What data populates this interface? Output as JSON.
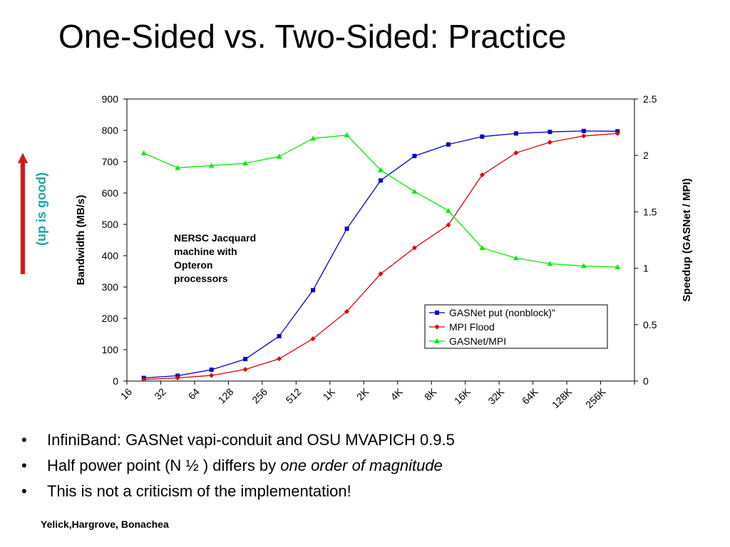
{
  "slide": {
    "title": "One-Sided vs. Two-Sided: Practice",
    "up_note": "(up is good)",
    "bullets": [
      {
        "text": "InfiniBand: GASNet vapi-conduit and OSU MVAPICH 0.9.5",
        "italic": ""
      },
      {
        "text": "Half power point (N ½ ) differs by ",
        "italic": "one order of magnitude"
      },
      {
        "text": "This is not a criticism of the implementation!",
        "italic": ""
      }
    ],
    "credit": "Yelick,Hargrove, Bonachea"
  },
  "chart_data": {
    "type": "line",
    "title": "",
    "xlabel": "",
    "ylabel": "Bandwidth (MB/s)",
    "y2label": "Speedup (GASNet / MPI)",
    "categories": [
      "16",
      "32",
      "64",
      "128",
      "256",
      "512",
      "1K",
      "2K",
      "4K",
      "8K",
      "16K",
      "32K",
      "64K",
      "128K",
      "256K"
    ],
    "ylim": [
      0,
      900
    ],
    "yticks": [
      0,
      100,
      200,
      300,
      400,
      500,
      600,
      700,
      800,
      900
    ],
    "y2lim": [
      0,
      2.5
    ],
    "y2ticks": [
      0,
      0.5,
      1,
      1.5,
      2,
      2.5
    ],
    "annotation": [
      "NERSC Jacquard",
      "machine with",
      "Opteron",
      "processors"
    ],
    "legend_position": "bottom-right",
    "series": [
      {
        "name": "GASNet put (nonblock)\"",
        "axis": "left",
        "color": "#0000cc",
        "marker": "square",
        "values": [
          10,
          17,
          36,
          70,
          143,
          290,
          486,
          640,
          718,
          755,
          780,
          790,
          795,
          798,
          797
        ]
      },
      {
        "name": "MPI Flood",
        "axis": "left",
        "color": "#e00000",
        "marker": "diamond",
        "values": [
          5,
          10,
          18,
          37,
          71,
          135,
          222,
          342,
          425,
          498,
          658,
          728,
          762,
          782,
          790
        ]
      },
      {
        "name": "GASNet/MPI",
        "axis": "right",
        "color": "#00ee00",
        "marker": "triangle",
        "values": [
          2.02,
          1.89,
          1.91,
          1.93,
          1.99,
          2.15,
          2.18,
          1.87,
          1.68,
          1.51,
          1.18,
          1.09,
          1.04,
          1.02,
          1.01
        ]
      }
    ]
  }
}
